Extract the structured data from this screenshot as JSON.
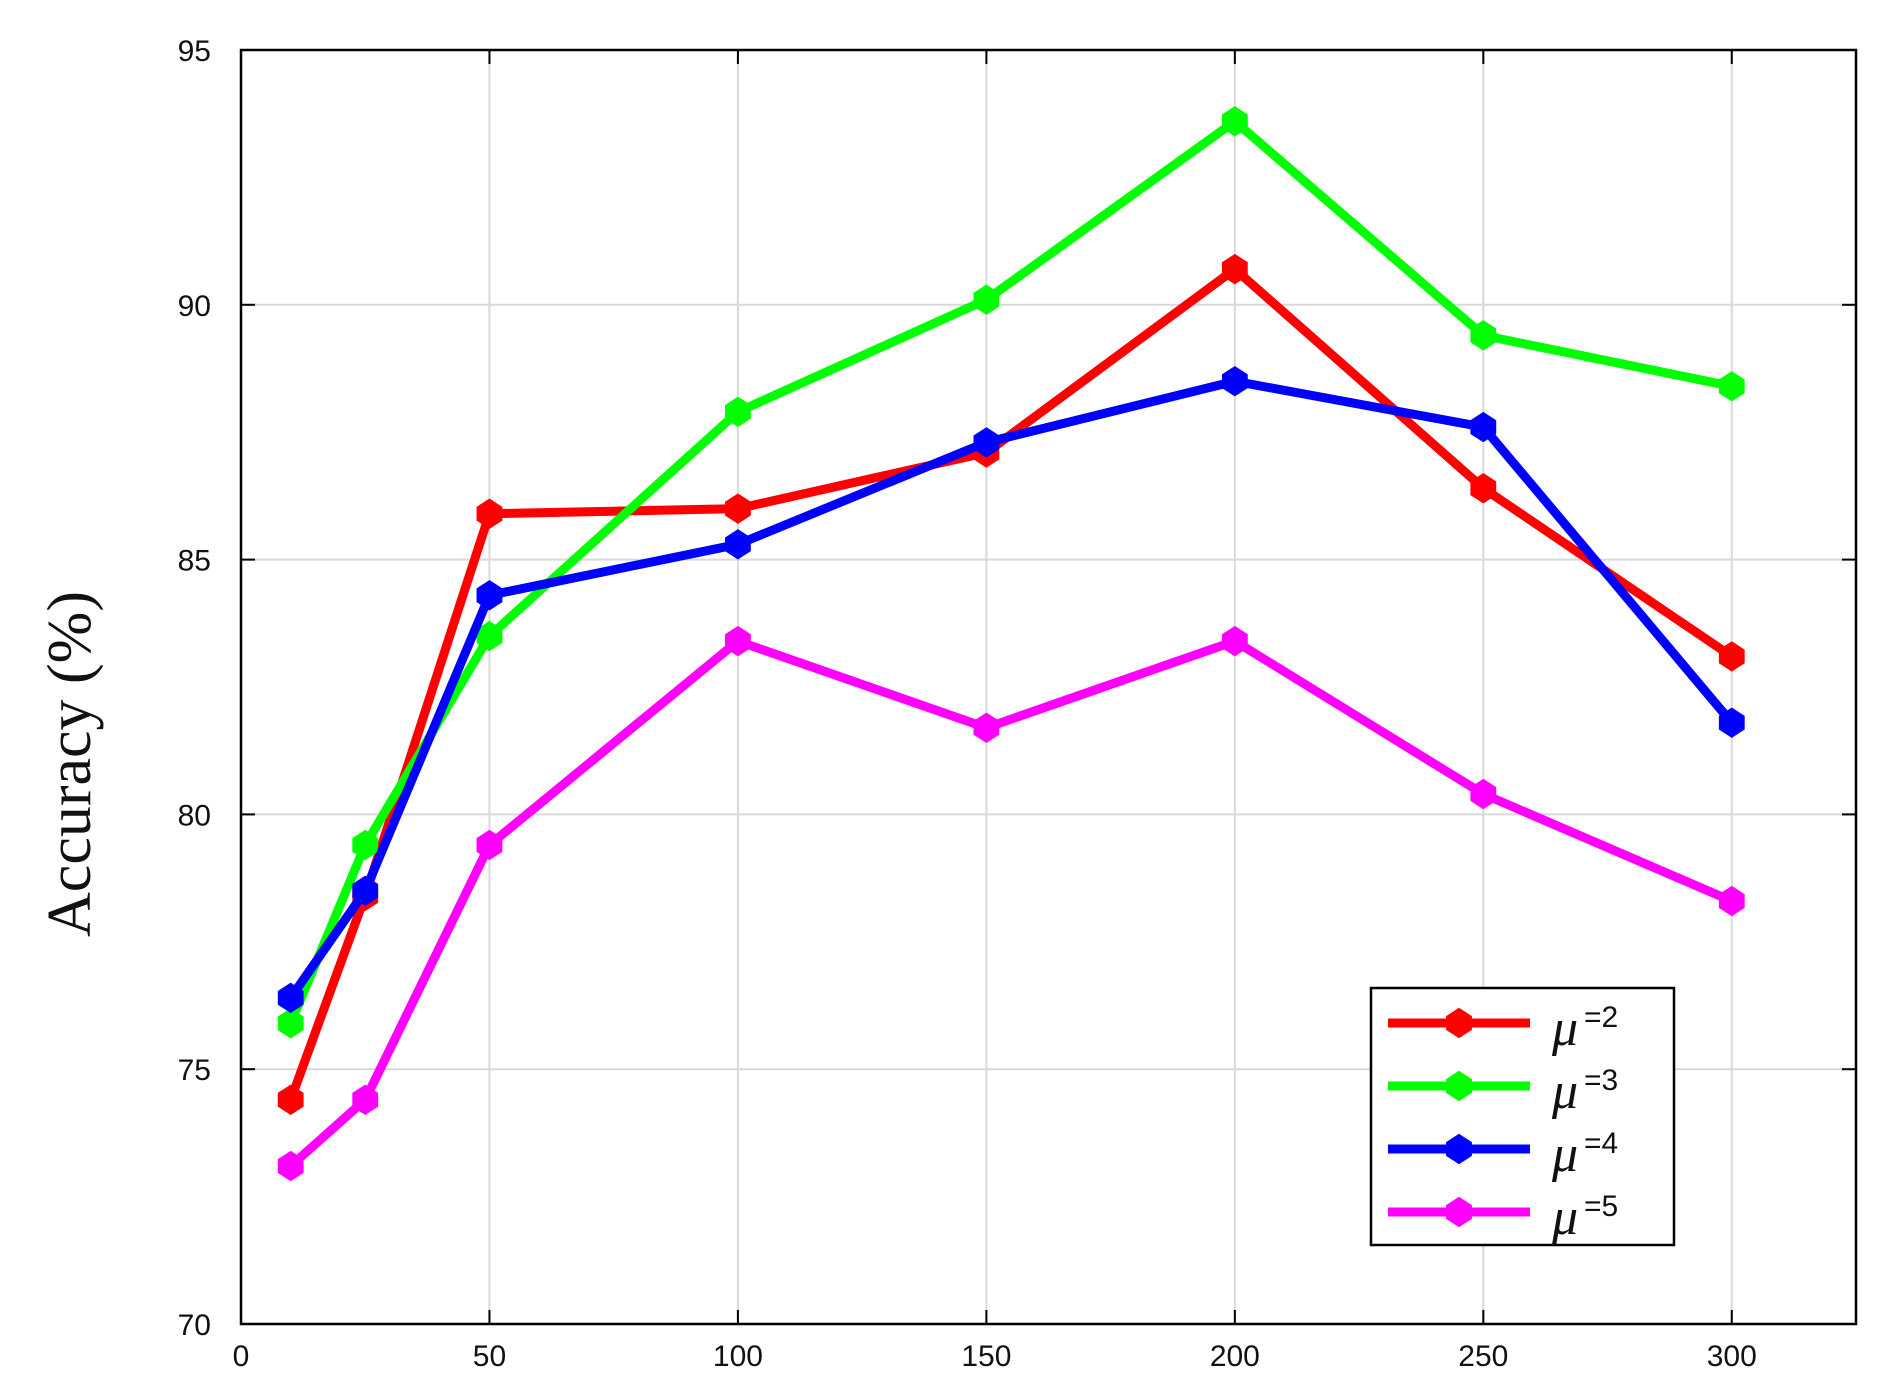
{
  "chart_data": {
    "type": "line",
    "title": "",
    "xlabel": "",
    "ylabel": "Accuracy (%)",
    "xlim": [
      0,
      325
    ],
    "ylim": [
      70,
      95
    ],
    "xticks": [
      0,
      50,
      100,
      150,
      200,
      250,
      300
    ],
    "yticks": [
      70,
      75,
      80,
      85,
      90,
      95
    ],
    "grid": true,
    "legend_position": "bottom-right",
    "x": [
      10,
      25,
      50,
      100,
      150,
      200,
      250,
      300
    ],
    "series": [
      {
        "name": "μ=2",
        "name_base": "μ",
        "name_sup": "=2",
        "color": "#ff0000",
        "marker": "diamond",
        "values": [
          74.4,
          78.4,
          85.9,
          86.0,
          87.1,
          90.7,
          86.4,
          83.1
        ]
      },
      {
        "name": "μ=3",
        "name_base": "μ",
        "name_sup": "=3",
        "color": "#00ff00",
        "marker": "diamond",
        "values": [
          75.9,
          79.4,
          83.5,
          87.9,
          90.1,
          93.6,
          89.4,
          88.4
        ]
      },
      {
        "name": "μ=4",
        "name_base": "μ",
        "name_sup": "=4",
        "color": "#0000ff",
        "marker": "diamond",
        "values": [
          76.4,
          78.5,
          84.3,
          85.3,
          87.3,
          88.5,
          87.6,
          81.8
        ]
      },
      {
        "name": "μ=5",
        "name_base": "μ",
        "name_sup": "=5",
        "color": "#ff00ff",
        "marker": "diamond",
        "values": [
          73.1,
          74.4,
          79.4,
          83.4,
          81.7,
          83.4,
          80.4,
          78.3
        ]
      }
    ]
  }
}
